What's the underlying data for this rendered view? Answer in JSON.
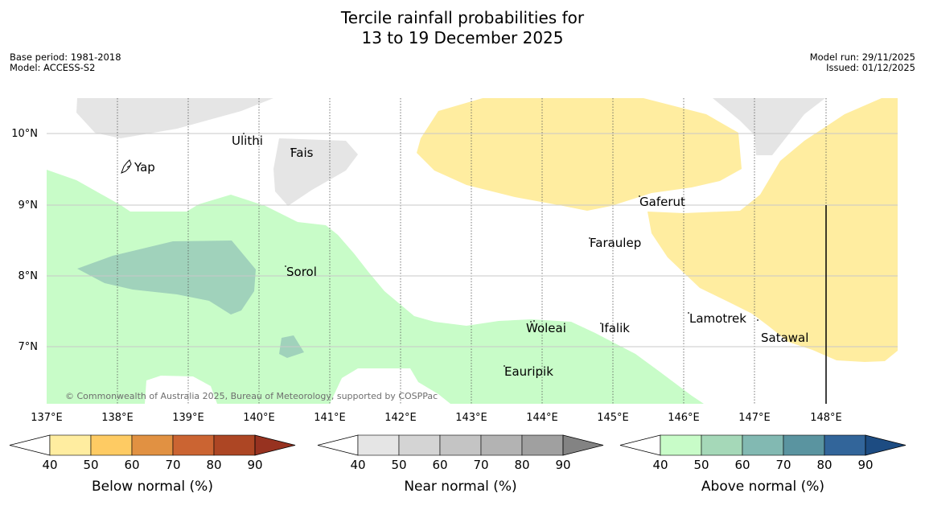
{
  "title_line1": "Tercile rainfall probabilities for",
  "title_line2": "13 to 19 December 2025",
  "meta_left": [
    "Base period: 1981-2018",
    "Model: ACCESS-S2"
  ],
  "meta_right": [
    "Model run: 29/11/2025",
    "Issued: 01/12/2025"
  ],
  "map": {
    "lon_ticks": [
      "137°E",
      "138°E",
      "139°E",
      "140°E",
      "141°E",
      "142°E",
      "143°E",
      "144°E",
      "145°E",
      "146°E",
      "147°E",
      "148°E"
    ],
    "lat_ticks": [
      "10°N",
      "9°N",
      "8°N",
      "7°N"
    ],
    "places": [
      "Yap",
      "Ulithi",
      "Fais",
      "Sorol",
      "Gaferut",
      "Faraulep",
      "Woleai",
      "Ifalik",
      "Lamotrek",
      "Satawal",
      "Eauripik"
    ],
    "copyright": "© Commonwealth of Australia 2025, Bureau of Meteorology, supported by COSPPac"
  },
  "legends": [
    {
      "label": "Below normal (%)",
      "ticks": [
        "40",
        "50",
        "60",
        "70",
        "80",
        "90"
      ],
      "colors": [
        "#ffeda0",
        "#fecb63",
        "#e19142",
        "#cb6432",
        "#ad4624",
        "#973220"
      ]
    },
    {
      "label": "Near normal (%)",
      "ticks": [
        "40",
        "50",
        "60",
        "70",
        "80",
        "90"
      ],
      "colors": [
        "#e5e5e5",
        "#d4d4d4",
        "#c4c4c4",
        "#b3b3b3",
        "#a0a0a0",
        "#838383"
      ]
    },
    {
      "label": "Above normal (%)",
      "ticks": [
        "40",
        "50",
        "60",
        "70",
        "80",
        "90"
      ],
      "colors": [
        "#c8fcc8",
        "#a5d8b8",
        "#82b9b2",
        "#5a94a0",
        "#32659a",
        "#1d4c82"
      ]
    }
  ]
}
